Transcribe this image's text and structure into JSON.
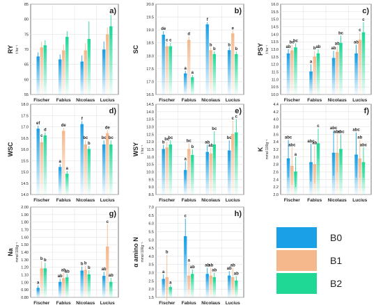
{
  "colors": {
    "B0": "#1aa0e6",
    "B1": "#f5b88d",
    "B2": "#1fd896"
  },
  "legend": [
    {
      "name": "B0",
      "color": "#1aa0e6"
    },
    {
      "name": "B1",
      "color": "#f5b88d"
    },
    {
      "name": "B2",
      "color": "#1fd896"
    }
  ],
  "chart_data": [
    {
      "type": "bar",
      "panel_label": "a)",
      "ylabel": "RY",
      "unit": "t ha⁻¹",
      "categories": [
        "Fischer",
        "Fabius",
        "Nicolaus",
        "Lucius"
      ],
      "ylim": [
        55,
        85
      ],
      "yticks": [
        55,
        60,
        65,
        70,
        75,
        80,
        85
      ],
      "grid": true,
      "series": [
        {
          "name": "B0",
          "values": [
            67.5,
            66.5,
            65.8,
            69.8
          ],
          "err": [
            1.5,
            1.8,
            2.2,
            2.8
          ]
        },
        {
          "name": "B1",
          "values": [
            70.5,
            69.5,
            69.5,
            74.8
          ],
          "err": [
            2.0,
            2.2,
            2.5,
            2.5
          ]
        },
        {
          "name": "B2",
          "values": [
            71.2,
            74.0,
            73.3,
            77.5
          ],
          "err": [
            1.8,
            2.0,
            6.0,
            4.0
          ]
        }
      ],
      "letters": []
    },
    {
      "type": "bar",
      "panel_label": "b)",
      "ylabel": "SC",
      "unit": "",
      "categories": [
        "Fischer",
        "Fabius",
        "Nicolaus",
        "Lucius"
      ],
      "ylim": [
        16.5,
        20.0
      ],
      "yticks": [
        16.5,
        17.0,
        17.5,
        18.0,
        18.5,
        19.0,
        19.5,
        20.0
      ],
      "grid": true,
      "series": [
        {
          "name": "B0",
          "values": [
            18.8,
            17.3,
            19.2,
            18.2
          ],
          "err": [
            0.15,
            0.12,
            0.1,
            0.12
          ]
        },
        {
          "name": "B1",
          "values": [
            18.35,
            18.6,
            18.2,
            18.85
          ],
          "err": [
            0.15,
            0.15,
            0.12,
            0.12
          ]
        },
        {
          "name": "B2",
          "values": [
            18.35,
            17.15,
            18.05,
            18.05
          ],
          "err": [
            0.15,
            0.1,
            0.12,
            0.12
          ]
        }
      ],
      "letters": [
        [
          "de",
          "c",
          "c"
        ],
        [
          "a",
          "d",
          "a"
        ],
        [
          "f",
          "b",
          "b"
        ],
        [
          "b",
          "e",
          "b"
        ]
      ]
    },
    {
      "type": "bar",
      "panel_label": "c)",
      "ylabel": "PSY",
      "unit": "t ha⁻¹",
      "categories": [
        "Fischer",
        "Fabius",
        "Nicolaus",
        "Lucius"
      ],
      "ylim": [
        10.0,
        16.0
      ],
      "yticks": [
        10.0,
        10.5,
        11.0,
        11.5,
        12.0,
        12.5,
        13.0,
        13.5,
        14.0,
        14.5,
        15.0,
        15.5,
        16.0
      ],
      "grid": true,
      "series": [
        {
          "name": "B0",
          "values": [
            12.7,
            11.5,
            12.4,
            12.7
          ],
          "err": [
            0.3,
            0.5,
            0.5,
            0.6
          ]
        },
        {
          "name": "B1",
          "values": [
            12.9,
            12.5,
            12.8,
            13.6
          ],
          "err": [
            0.4,
            0.4,
            0.4,
            0.5
          ]
        },
        {
          "name": "B2",
          "values": [
            13.1,
            12.7,
            13.4,
            14.1
          ],
          "err": [
            0.3,
            0.3,
            0.5,
            0.7
          ]
        }
      ],
      "letters": [
        [
          "ab",
          "bc",
          "bc"
        ],
        [
          "a",
          "b",
          "ab"
        ],
        [
          "ab",
          "ab",
          "bc"
        ],
        [
          "ab",
          "c",
          "c"
        ]
      ]
    },
    {
      "type": "bar",
      "panel_label": "d)",
      "ylabel": "WSC",
      "unit": "",
      "categories": [
        "Fischer",
        "Fabius",
        "Nicolaus",
        "Lucius"
      ],
      "ylim": [
        14.0,
        18.0
      ],
      "yticks": [
        14.0,
        14.5,
        15.0,
        15.5,
        16.0,
        16.5,
        17.0,
        17.5,
        18.0
      ],
      "grid": true,
      "series": [
        {
          "name": "B0",
          "values": [
            16.9,
            15.2,
            17.1,
            16.2
          ],
          "err": [
            0.15,
            0.15,
            0.15,
            0.2
          ]
        },
        {
          "name": "B1",
          "values": [
            16.3,
            16.8,
            16.2,
            16.7
          ],
          "err": [
            0.2,
            0.15,
            0.2,
            0.15
          ]
        },
        {
          "name": "B2",
          "values": [
            16.6,
            14.9,
            16.0,
            16.2
          ],
          "err": [
            0.15,
            0.15,
            0.15,
            0.2
          ]
        }
      ],
      "letters": [
        [
          "ef",
          "c",
          "d"
        ],
        [
          "a",
          "de",
          "a"
        ],
        [
          "f",
          "bc",
          "b"
        ],
        [
          "bc",
          "de",
          "bc"
        ]
      ]
    },
    {
      "type": "bar",
      "panel_label": "e)",
      "ylabel": "WSY",
      "unit": "t ha⁻¹",
      "categories": [
        "Fischer",
        "Fabius",
        "Nicolaus",
        "Lucius"
      ],
      "ylim": [
        8.5,
        14.5
      ],
      "yticks": [
        8.5,
        9.0,
        9.5,
        10.0,
        10.5,
        11.0,
        11.5,
        12.0,
        12.5,
        13.0,
        13.5,
        14.0,
        14.5
      ],
      "grid": true,
      "series": [
        {
          "name": "B0",
          "values": [
            11.5,
            10.1,
            11.3,
            11.4
          ],
          "err": [
            0.3,
            0.6,
            0.5,
            0.7
          ]
        },
        {
          "name": "B1",
          "values": [
            11.6,
            11.5,
            11.2,
            12.5
          ],
          "err": [
            0.4,
            0.4,
            0.4,
            0.9
          ]
        },
        {
          "name": "B2",
          "values": [
            11.8,
            11.1,
            11.8,
            12.6
          ],
          "err": [
            0.3,
            0.4,
            0.9,
            0.9
          ]
        }
      ],
      "letters": [
        [
          "b",
          "bc",
          "bc"
        ],
        [
          "a",
          "bc",
          "b"
        ],
        [
          "ab",
          "ab",
          "bc"
        ],
        [
          "bc",
          "c",
          "c"
        ]
      ]
    },
    {
      "type": "bar",
      "panel_label": "f)",
      "ylabel": "K",
      "unit": "mmol 100g⁻¹",
      "categories": [
        "Fischer",
        "Fabius",
        "Nicolaus",
        "Lucius"
      ],
      "ylim": [
        2.0,
        4.4
      ],
      "yticks": [
        2.0,
        2.2,
        2.4,
        2.6,
        2.8,
        3.0,
        3.2,
        3.4,
        3.6,
        3.8,
        4.0,
        4.2,
        4.4
      ],
      "grid": true,
      "series": [
        {
          "name": "B0",
          "values": [
            2.95,
            2.85,
            3.1,
            3.05
          ],
          "err": [
            0.5,
            0.5,
            0.6,
            0.6
          ]
        },
        {
          "name": "B1",
          "values": [
            2.75,
            2.8,
            3.1,
            2.95
          ],
          "err": [
            0.5,
            0.5,
            0.5,
            0.5
          ]
        },
        {
          "name": "B2",
          "values": [
            2.6,
            3.35,
            3.2,
            2.85
          ],
          "err": [
            0.4,
            0.4,
            0.4,
            0.4
          ]
        }
      ],
      "letters": [
        [
          "abc",
          "abc",
          "a"
        ],
        [
          "abc",
          "ab",
          "c"
        ],
        [
          "abc",
          "abc",
          "abc"
        ],
        [
          "abc",
          "ab",
          "abc"
        ]
      ]
    },
    {
      "type": "bar",
      "panel_label": "g)",
      "ylabel": "Na",
      "unit": "mmol 100g⁻¹",
      "categories": [
        "Fischer",
        "Fabius",
        "Nicolaus",
        "Lucius"
      ],
      "ylim": [
        0.8,
        2.0
      ],
      "yticks": [
        0.8,
        0.9,
        1.0,
        1.1,
        1.2,
        1.3,
        1.4,
        1.5,
        1.6,
        1.7,
        1.8,
        1.9,
        2.0
      ],
      "grid": true,
      "series": [
        {
          "name": "B0",
          "values": [
            0.92,
            1.0,
            1.15,
            1.08
          ],
          "err": [
            0.04,
            0.05,
            0.06,
            0.06
          ]
        },
        {
          "name": "B1",
          "values": [
            1.18,
            1.05,
            1.16,
            1.47
          ],
          "err": [
            0.1,
            0.08,
            0.06,
            0.3
          ]
        },
        {
          "name": "B2",
          "values": [
            1.18,
            1.06,
            1.1,
            1.0
          ],
          "err": [
            0.08,
            0.05,
            0.06,
            0.06
          ]
        }
      ],
      "letters": [
        [
          "a",
          "b",
          "b"
        ],
        [
          "ab",
          "ab",
          "ab"
        ],
        [
          "b",
          "b",
          "b"
        ],
        [
          "ab",
          "c",
          "ab"
        ]
      ]
    },
    {
      "type": "bar",
      "panel_label": "h)",
      "ylabel": "α amino N",
      "unit": "mmol 100g⁻¹",
      "categories": [
        "Fischer",
        "Fabius",
        "Nicolaus",
        "Lucius"
      ],
      "ylim": [
        1.5,
        7.0
      ],
      "yticks": [
        1.5,
        2.0,
        2.5,
        3.0,
        3.5,
        4.0,
        4.5,
        5.0,
        5.5,
        6.0,
        6.5,
        7.0
      ],
      "grid": true,
      "series": [
        {
          "name": "B0",
          "values": [
            2.6,
            5.2,
            2.9,
            2.8
          ],
          "err": [
            0.3,
            1.1,
            0.4,
            0.3
          ]
        },
        {
          "name": "B1",
          "values": [
            2.7,
            2.8,
            2.8,
            2.7
          ],
          "err": [
            1.4,
            0.8,
            0.5,
            0.6
          ]
        },
        {
          "name": "B2",
          "values": [
            2.1,
            2.9,
            2.7,
            2.5
          ],
          "err": [
            0.15,
            0.3,
            0.3,
            0.3
          ]
        }
      ],
      "letters": [
        [
          "a",
          "b",
          "a"
        ],
        [
          "c",
          "a",
          "ab"
        ],
        [
          "ab",
          "ab",
          "ab"
        ],
        [
          "ab",
          "ab",
          "ab"
        ]
      ]
    }
  ]
}
